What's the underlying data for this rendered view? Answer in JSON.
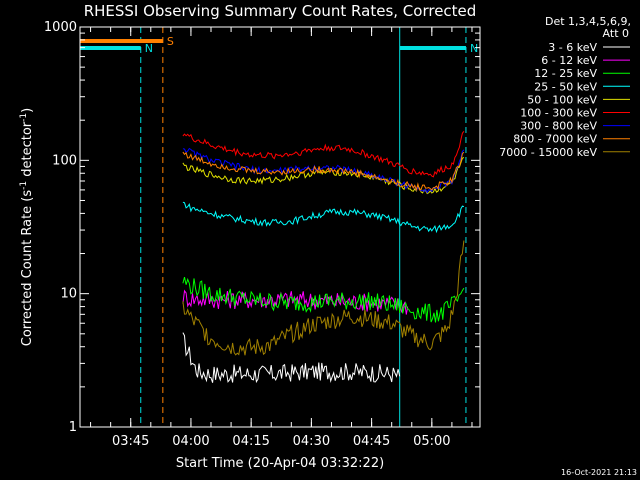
{
  "chart_data": {
    "type": "line",
    "title": "RHESSI Observing Summary Count Rates, Corrected",
    "xlabel": "Start Time (20-Apr-04 03:32:22)",
    "ylabel": "Corrected Count Rate (s⁻¹ detector⁻¹)",
    "ylabel_parts": [
      "Corrected Count Rate (s",
      "-1",
      " detector",
      "-1",
      ")"
    ],
    "y_scale": "log",
    "ylim": [
      1,
      1000
    ],
    "xlim": [
      "03:32:22",
      "05:12:00"
    ],
    "x_ticks": [
      "03:45",
      "04:00",
      "04:15",
      "04:30",
      "04:45",
      "05:00"
    ],
    "y_ticks": [
      "1",
      "10",
      "100",
      "1000"
    ],
    "legend": {
      "header": [
        "Det 1,3,4,5,6,9,",
        "Att 0"
      ],
      "position": "right"
    },
    "footer": "16-Oct-2021 21:13",
    "colors": {
      "night": "#00e0e0",
      "saa": "#ff8000",
      "frame": "#ffffff"
    },
    "flags": [
      {
        "label": "N",
        "color": "#00e0e0",
        "start": "03:32:22",
        "end": "03:47:30"
      },
      {
        "label": "N",
        "color": "#00e0e0",
        "start": "04:52:00",
        "end": "05:08:30"
      },
      {
        "label": "S",
        "color": "#ff8000",
        "start": "03:32:22",
        "end": "03:53:00"
      }
    ],
    "series": [
      {
        "name": "3 - 6 keV",
        "color": "#ffffff",
        "x": [
          "03:58",
          "04:00",
          "04:01",
          "04:02",
          "04:05",
          "04:10",
          "04:20",
          "04:30",
          "04:40",
          "04:50",
          "04:52"
        ],
        "y": [
          4.5,
          3.3,
          2.8,
          2.6,
          2.5,
          2.5,
          2.5,
          2.6,
          2.6,
          2.5,
          2.4
        ]
      },
      {
        "name": "6 - 12 keV",
        "color": "#ff00ff",
        "x": [
          "03:58",
          "04:00",
          "04:05",
          "04:15",
          "04:25",
          "04:35",
          "04:45",
          "04:50",
          "04:54"
        ],
        "y": [
          9.5,
          9.2,
          9.0,
          9.0,
          9.1,
          8.8,
          8.6,
          8.3,
          8.0
        ]
      },
      {
        "name": "12 - 25 keV",
        "color": "#00ff00",
        "x": [
          "03:58",
          "04:00",
          "04:05",
          "04:15",
          "04:25",
          "04:35",
          "04:45",
          "04:52",
          "04:58",
          "05:02",
          "05:06",
          "05:08"
        ],
        "y": [
          12.5,
          11.5,
          10.0,
          9.0,
          8.5,
          8.8,
          8.8,
          8.0,
          7.2,
          7.0,
          8.5,
          11.0
        ]
      },
      {
        "name": "25 - 50 keV",
        "color": "#00ffff",
        "x": [
          "03:58",
          "04:00",
          "04:05",
          "04:10",
          "04:15",
          "04:20",
          "04:25",
          "04:30",
          "04:35",
          "04:40",
          "04:45",
          "04:50",
          "04:55",
          "05:00",
          "05:05",
          "05:08"
        ],
        "y": [
          48,
          44,
          40,
          37,
          35,
          34,
          35,
          38,
          41,
          41,
          39,
          36,
          32,
          30,
          33,
          45
        ]
      },
      {
        "name": "50 - 100 keV",
        "color": "#e0e000",
        "x": [
          "03:58",
          "04:00",
          "04:05",
          "04:10",
          "04:15",
          "04:20",
          "04:25",
          "04:30",
          "04:35",
          "04:40",
          "04:45",
          "04:50",
          "04:55",
          "05:00",
          "05:05",
          "05:08"
        ],
        "y": [
          92,
          86,
          78,
          72,
          70,
          71,
          75,
          80,
          82,
          80,
          75,
          68,
          61,
          58,
          67,
          105
        ]
      },
      {
        "name": "100 - 300 keV",
        "color": "#ff0000",
        "x": [
          "03:58",
          "04:00",
          "04:05",
          "04:10",
          "04:15",
          "04:20",
          "04:25",
          "04:30",
          "04:35",
          "04:40",
          "04:45",
          "04:50",
          "04:55",
          "05:00",
          "05:05",
          "05:08"
        ],
        "y": [
          160,
          148,
          130,
          118,
          110,
          108,
          112,
          120,
          125,
          120,
          108,
          95,
          83,
          78,
          92,
          165
        ]
      },
      {
        "name": "300 - 800 keV",
        "color": "#0000ff",
        "x": [
          "03:58",
          "04:00",
          "04:05",
          "04:10",
          "04:15",
          "04:20",
          "04:25",
          "04:30",
          "04:35",
          "04:40",
          "04:45",
          "04:50",
          "04:55",
          "05:00",
          "05:05",
          "05:08"
        ],
        "y": [
          125,
          115,
          100,
          92,
          85,
          83,
          85,
          88,
          88,
          84,
          78,
          70,
          63,
          60,
          70,
          120
        ]
      },
      {
        "name": "800 - 7000 keV",
        "color": "#ff8000",
        "x": [
          "03:58",
          "04:00",
          "04:05",
          "04:10",
          "04:15",
          "04:20",
          "04:25",
          "04:30",
          "04:35",
          "04:40",
          "04:45",
          "04:50",
          "04:55",
          "05:00",
          "05:05",
          "05:08"
        ],
        "y": [
          115,
          106,
          95,
          88,
          83,
          82,
          83,
          85,
          85,
          82,
          76,
          69,
          64,
          62,
          70,
          115
        ]
      },
      {
        "name": "7000 - 15000 keV",
        "color": "#a08000",
        "x": [
          "03:58",
          "04:00",
          "04:05",
          "04:10",
          "04:15",
          "04:20",
          "04:25",
          "04:30",
          "04:40",
          "04:50",
          "04:55",
          "05:00",
          "05:04",
          "05:06",
          "05:08"
        ],
        "y": [
          8.0,
          6.5,
          4.6,
          4.0,
          3.9,
          4.1,
          5.0,
          5.8,
          6.8,
          6.0,
          4.8,
          4.2,
          5.5,
          9.0,
          25.0
        ]
      }
    ]
  }
}
